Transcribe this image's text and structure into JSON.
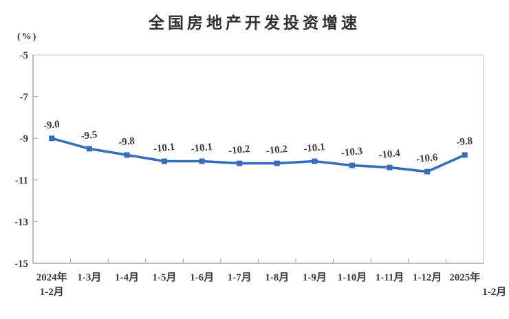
{
  "chart": {
    "title": "全国房地产开发投资增速",
    "unit_label": "(%)"
  },
  "chart_data": {
    "type": "line",
    "title": "全国房地产开发投资增速",
    "ylabel": "(%)",
    "xlabel": "",
    "categories": [
      "2024年|1-2月",
      "1-3月",
      "1-4月",
      "1-5月",
      "1-6月",
      "1-7月",
      "1-8月",
      "1-9月",
      "1-10月",
      "1-11月",
      "1-12月",
      "2025年|1-2月"
    ],
    "values": [
      -9.0,
      -9.5,
      -9.8,
      -10.1,
      -10.1,
      -10.2,
      -10.2,
      -10.1,
      -10.3,
      -10.4,
      -10.6,
      -9.8
    ],
    "data_labels": [
      "-9.0",
      "-9.5",
      "-9.8",
      "-10.1",
      "-10.1",
      "-10.2",
      "-10.2",
      "-10.1",
      "-10.3",
      "-10.4",
      "-10.6",
      "-9.8"
    ],
    "ylim": [
      -15,
      -5
    ],
    "yticks": [
      -5,
      -7,
      -9,
      -11,
      -13,
      -15
    ],
    "grid": false,
    "legend": "none",
    "marker": "square",
    "line_color": "#366bbe",
    "marker_color": "#366bbe",
    "text_color": "#3a3a3a",
    "axis_color": "#ababab",
    "border_color": "#d9d9d9"
  }
}
